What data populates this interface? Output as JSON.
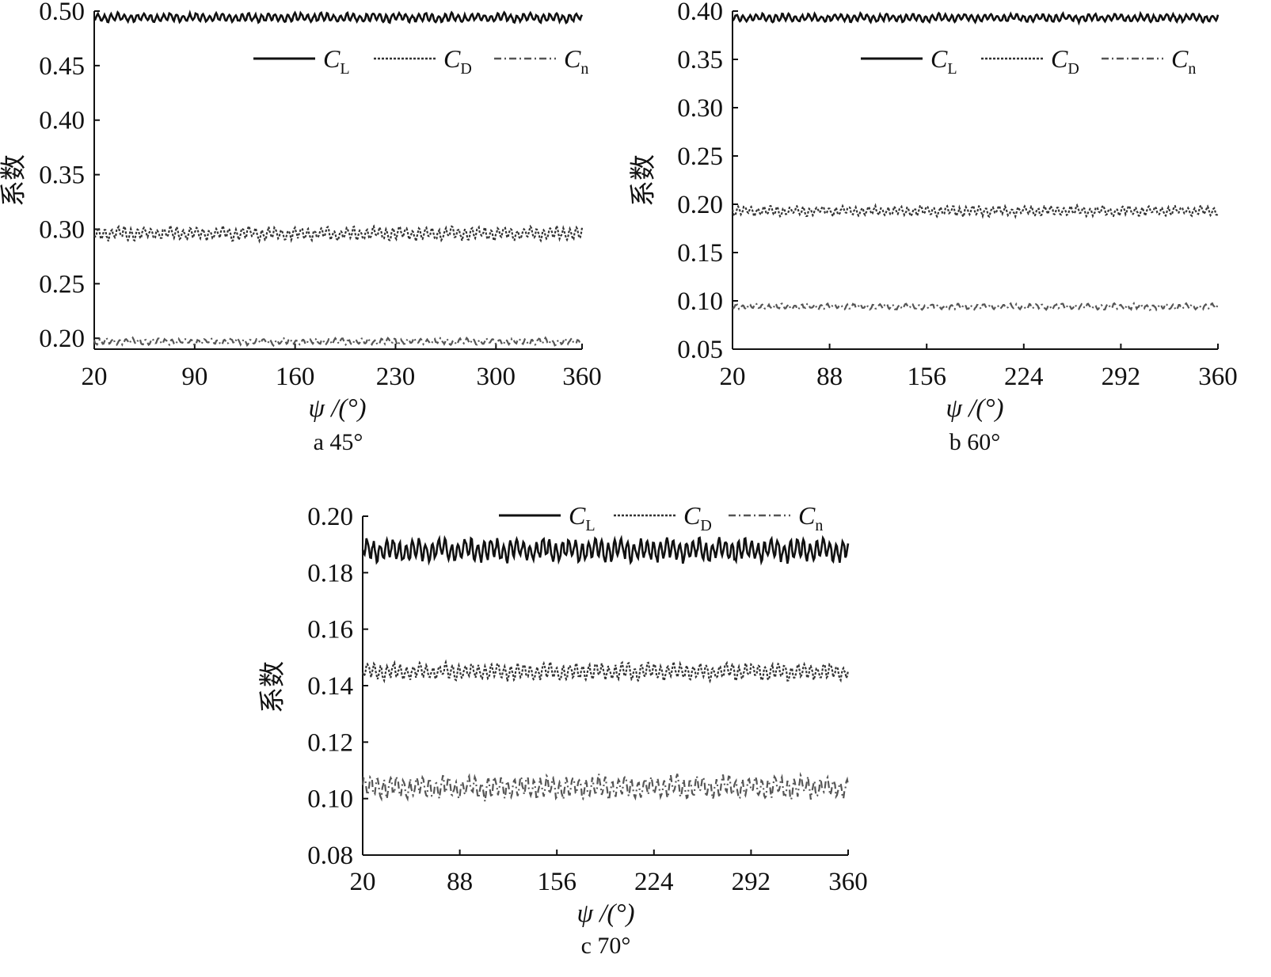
{
  "chart_data": [
    {
      "type": "line",
      "caption": "a 45°",
      "xlabel": "ψ /(°)",
      "ylabel": "系数",
      "xlim": [
        20,
        360
      ],
      "ylim": [
        0.19,
        0.5
      ],
      "xticks": [
        "20",
        "90",
        "160",
        "230",
        "300",
        "360"
      ],
      "yticks": [
        "0.20",
        "0.25",
        "0.30",
        "0.35",
        "0.40",
        "0.45",
        "0.50"
      ],
      "legend_position": "top-right",
      "series": [
        {
          "name": "C",
          "subscript": "L",
          "style": "solid",
          "color": "#111111",
          "mean": 0.494,
          "amplitude": 0.004,
          "x": [
            20,
            360
          ]
        },
        {
          "name": "C",
          "subscript": "D",
          "style": "dotted",
          "color": "#333333",
          "mean": 0.296,
          "amplitude": 0.006,
          "x": [
            20,
            360
          ]
        },
        {
          "name": "C",
          "subscript": "n",
          "style": "dash-dot",
          "color": "#555555",
          "mean": 0.197,
          "amplitude": 0.003,
          "x": [
            20,
            360
          ]
        }
      ]
    },
    {
      "type": "line",
      "caption": "b 60°",
      "xlabel": "ψ /(°)",
      "ylabel": "系数",
      "xlim": [
        20,
        360
      ],
      "ylim": [
        0.05,
        0.4
      ],
      "xticks": [
        "20",
        "88",
        "156",
        "224",
        "292",
        "360"
      ],
      "yticks": [
        "0.05",
        "0.10",
        "0.15",
        "0.20",
        "0.25",
        "0.30",
        "0.35",
        "0.40"
      ],
      "legend_position": "top-right",
      "series": [
        {
          "name": "C",
          "subscript": "L",
          "style": "solid",
          "color": "#111111",
          "mean": 0.393,
          "amplitude": 0.004,
          "x": [
            20,
            360
          ]
        },
        {
          "name": "C",
          "subscript": "D",
          "style": "dotted",
          "color": "#333333",
          "mean": 0.193,
          "amplitude": 0.005,
          "x": [
            20,
            360
          ]
        },
        {
          "name": "C",
          "subscript": "n",
          "style": "dash-dot",
          "color": "#555555",
          "mean": 0.094,
          "amplitude": 0.003,
          "x": [
            20,
            360
          ]
        }
      ]
    },
    {
      "type": "line",
      "caption": "c 70°",
      "xlabel": "ψ /(°)",
      "ylabel": "系数",
      "xlim": [
        20,
        360
      ],
      "ylim": [
        0.08,
        0.2
      ],
      "xticks": [
        "20",
        "88",
        "156",
        "224",
        "292",
        "360"
      ],
      "yticks": [
        "0.08",
        "0.10",
        "0.12",
        "0.14",
        "0.16",
        "0.18",
        "0.20"
      ],
      "legend_position": "top",
      "series": [
        {
          "name": "C",
          "subscript": "L",
          "style": "solid",
          "color": "#111111",
          "mean": 0.188,
          "amplitude": 0.004,
          "x": [
            20,
            360
          ]
        },
        {
          "name": "C",
          "subscript": "D",
          "style": "dotted",
          "color": "#333333",
          "mean": 0.145,
          "amplitude": 0.003,
          "x": [
            20,
            360
          ]
        },
        {
          "name": "C",
          "subscript": "n",
          "style": "dash-dot",
          "color": "#555555",
          "mean": 0.104,
          "amplitude": 0.004,
          "x": [
            20,
            360
          ]
        }
      ]
    }
  ]
}
